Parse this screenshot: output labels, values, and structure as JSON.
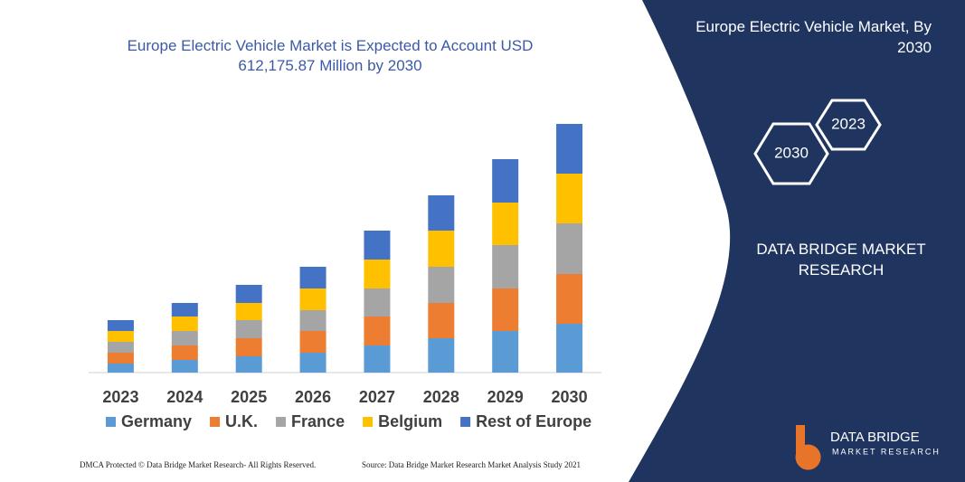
{
  "chart_data": {
    "type": "stacked-bar",
    "title": "Europe Electric Vehicle Market is Expected to Account USD 612,175.87 Million by 2030",
    "categories": [
      "2023",
      "2024",
      "2025",
      "2026",
      "2027",
      "2028",
      "2029",
      "2030"
    ],
    "series": [
      {
        "name": "Germany",
        "color": "#5b9bd5",
        "values": [
          10,
          14,
          18,
          22,
          30,
          38,
          46,
          54
        ]
      },
      {
        "name": "U.K.",
        "color": "#ed7d31",
        "values": [
          12,
          16,
          20,
          24,
          32,
          39,
          47,
          55
        ]
      },
      {
        "name": "France",
        "color": "#a5a5a5",
        "values": [
          12,
          16,
          20,
          23,
          31,
          40,
          48,
          56
        ]
      },
      {
        "name": "Belgium",
        "color": "#ffc000",
        "values": [
          12,
          16,
          19,
          24,
          32,
          40,
          47,
          55
        ]
      },
      {
        "name": "Rest of Europe",
        "color": "#4472c4",
        "values": [
          12,
          15,
          20,
          24,
          32,
          39,
          48,
          55
        ]
      }
    ],
    "ylim": [
      0,
      300
    ],
    "legend": "bottom"
  },
  "panel": {
    "title": "Europe Electric Vehicle Market, By 2030",
    "hexagons": [
      "2023",
      "2030"
    ],
    "brand": "DATA BRIDGE MARKET RESEARCH"
  },
  "logo": {
    "name": "DATA BRIDGE",
    "tagline": "MARKET RESEARCH"
  },
  "footer": {
    "left": "DMCA Protected © Data Bridge Market Research-  All Rights Reserved.",
    "right": "Source: Data Bridge Market Research  Market Analysis Study 2021"
  }
}
